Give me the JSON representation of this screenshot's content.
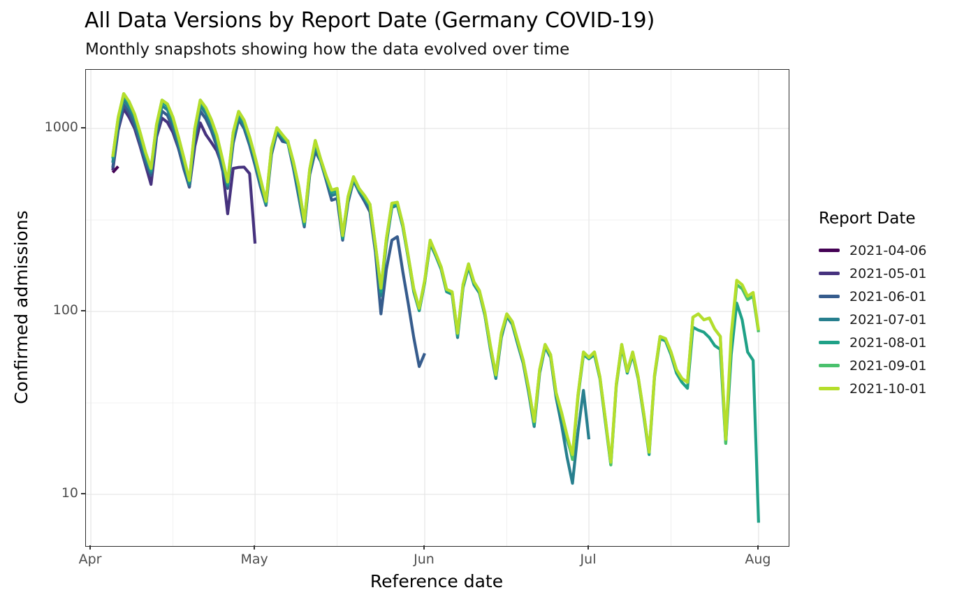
{
  "chart_data": {
    "type": "line",
    "title": "All Data Versions by Report Date (Germany COVID-19)",
    "subtitle": "Monthly snapshots showing how the data evolved over time",
    "xlabel": "Reference date",
    "ylabel": "Confirmed admissions",
    "legend_title": "Report Date",
    "legend_position": "right",
    "grid": true,
    "y_scale": "log10",
    "x_axis": {
      "start_date": "2021-04-01",
      "tick_labels": [
        "Apr",
        "May",
        "Jun",
        "Jul",
        "Aug"
      ],
      "tick_days": [
        0,
        30,
        61,
        91,
        122
      ],
      "minor_days": [
        15,
        45,
        76,
        106
      ],
      "domain_days": [
        -0.9,
        127.5
      ]
    },
    "y_axis": {
      "tick_values": [
        1000,
        100,
        10
      ],
      "tick_labels": [
        "1000",
        "100",
        "10"
      ],
      "minor_values": [
        316.23,
        31.62
      ],
      "domain_log10": [
        0.7176,
        3.3206
      ]
    },
    "series_start_date": "2021-04-05",
    "series_start_day": 4,
    "series": [
      {
        "name": "2021-04-06",
        "color": "#440154",
        "values": [
          575,
          620
        ]
      },
      {
        "name": "2021-05-01",
        "color": "#46327e",
        "values": [
          590,
          980,
          1280,
          1150,
          1000,
          800,
          630,
          495,
          900,
          1140,
          1080,
          950,
          780,
          610,
          478,
          800,
          1073,
          926,
          840,
          755,
          625,
          342,
          605,
          613,
          615,
          567,
          235
        ]
      },
      {
        "name": "2021-06-01",
        "color": "#365c8d",
        "values": [
          610,
          1000,
          1350,
          1220,
          1040,
          825,
          645,
          555,
          915,
          1245,
          1180,
          1000,
          785,
          600,
          480,
          870,
          1245,
          1130,
          975,
          800,
          600,
          470,
          830,
          1120,
          1000,
          810,
          630,
          480,
          380,
          720,
          950,
          850,
          835,
          610,
          420,
          290,
          560,
          750,
          660,
          520,
          405,
          415,
          245,
          395,
          520,
          450,
          400,
          350,
          210,
          97,
          170,
          245,
          256,
          165,
          110,
          72,
          50,
          59
        ]
      },
      {
        "name": "2021-07-01",
        "color": "#277f8e",
        "values": [
          650,
          1070,
          1440,
          1300,
          1120,
          880,
          690,
          575,
          980,
          1330,
          1265,
          1070,
          840,
          645,
          495,
          930,
          1330,
          1210,
          1040,
          855,
          645,
          485,
          885,
          1155,
          1035,
          840,
          655,
          495,
          385,
          745,
          965,
          890,
          855,
          625,
          432,
          295,
          575,
          800,
          665,
          535,
          430,
          440,
          250,
          410,
          530,
          460,
          415,
          370,
          222,
          122,
          235,
          370,
          380,
          290,
          195,
          128,
          101,
          145,
          235,
          202,
          170,
          128,
          124,
          72,
          135,
          175,
          140,
          126,
          95,
          62,
          43,
          72,
          94,
          85,
          66,
          52,
          36,
          23.5,
          46,
          64,
          56,
          34,
          24,
          16,
          11.5,
          22,
          37,
          20
        ]
      },
      {
        "name": "2021-08-01",
        "color": "#1fa187",
        "values": [
          685,
          1120,
          1510,
          1365,
          1170,
          925,
          720,
          590,
          1020,
          1395,
          1325,
          1120,
          875,
          670,
          507,
          975,
          1395,
          1270,
          1090,
          895,
          672,
          497,
          925,
          1210,
          1082,
          877,
          682,
          516,
          390,
          760,
          985,
          900,
          830,
          643,
          467,
          302,
          585,
          838,
          662,
          536,
          448,
          458,
          253,
          414,
          531,
          458,
          419,
          375,
          224,
          128,
          244,
          380,
          385,
          292,
          195,
          130,
          101,
          144,
          239,
          203,
          171,
          129,
          125,
          74,
          136,
          177,
          141,
          127,
          95,
          63,
          44,
          74,
          95,
          86,
          67,
          53,
          37,
          24,
          47,
          64,
          57,
          35,
          27,
          20,
          16,
          34,
          58,
          55,
          58,
          43,
          25,
          14.5,
          39,
          64,
          46,
          58,
          43,
          27,
          16.5,
          44,
          71,
          69,
          58,
          46,
          41,
          38,
          82,
          79,
          77,
          72,
          65,
          62,
          19,
          58,
          111,
          90,
          60,
          54,
          7
        ]
      },
      {
        "name": "2021-09-01",
        "color": "#4ac16d",
        "values": [
          700,
          1150,
          1550,
          1400,
          1200,
          950,
          740,
          605,
          1050,
          1430,
          1360,
          1150,
          900,
          690,
          520,
          1000,
          1430,
          1300,
          1120,
          920,
          690,
          510,
          950,
          1240,
          1110,
          900,
          700,
          530,
          400,
          780,
          1010,
          925,
          850,
          660,
          480,
          310,
          600,
          860,
          680,
          550,
          460,
          470,
          260,
          425,
          545,
          470,
          430,
          385,
          230,
          134,
          250,
          390,
          395,
          300,
          200,
          133,
          104,
          148,
          245,
          208,
          175,
          132,
          128,
          76,
          140,
          182,
          145,
          130,
          98,
          65,
          45,
          76,
          97,
          88,
          69,
          54,
          38,
          25,
          48,
          66,
          58,
          36,
          28,
          21,
          15.5,
          35,
          60,
          56,
          60,
          44,
          26,
          14.5,
          40,
          66,
          47,
          60,
          44,
          28,
          17,
          45,
          73,
          71,
          60,
          48,
          43,
          41,
          93,
          97,
          90,
          92,
          80,
          73,
          19,
          70,
          140,
          133,
          116,
          121,
          77
        ]
      },
      {
        "name": "2021-10-01",
        "color": "#b5de2b",
        "values": [
          700,
          1150,
          1550,
          1400,
          1200,
          950,
          740,
          605,
          1050,
          1430,
          1360,
          1150,
          900,
          690,
          520,
          1000,
          1430,
          1300,
          1120,
          920,
          690,
          510,
          950,
          1240,
          1110,
          900,
          700,
          530,
          400,
          780,
          1010,
          925,
          850,
          660,
          480,
          310,
          600,
          860,
          680,
          550,
          460,
          470,
          260,
          425,
          545,
          470,
          430,
          385,
          230,
          134,
          250,
          390,
          395,
          300,
          200,
          133,
          104,
          148,
          245,
          208,
          175,
          132,
          128,
          76,
          140,
          182,
          145,
          130,
          98,
          65,
          45,
          76,
          97,
          88,
          69,
          54,
          38,
          25,
          48,
          66,
          58,
          36,
          28,
          21,
          16.5,
          35,
          60,
          56,
          60,
          44,
          26,
          15,
          40,
          66,
          47,
          60,
          44,
          28,
          17,
          45,
          73,
          71,
          60,
          48,
          43,
          41,
          93,
          97,
          90,
          92,
          80,
          73,
          20,
          75,
          148,
          140,
          121,
          127,
          79
        ]
      }
    ]
  }
}
